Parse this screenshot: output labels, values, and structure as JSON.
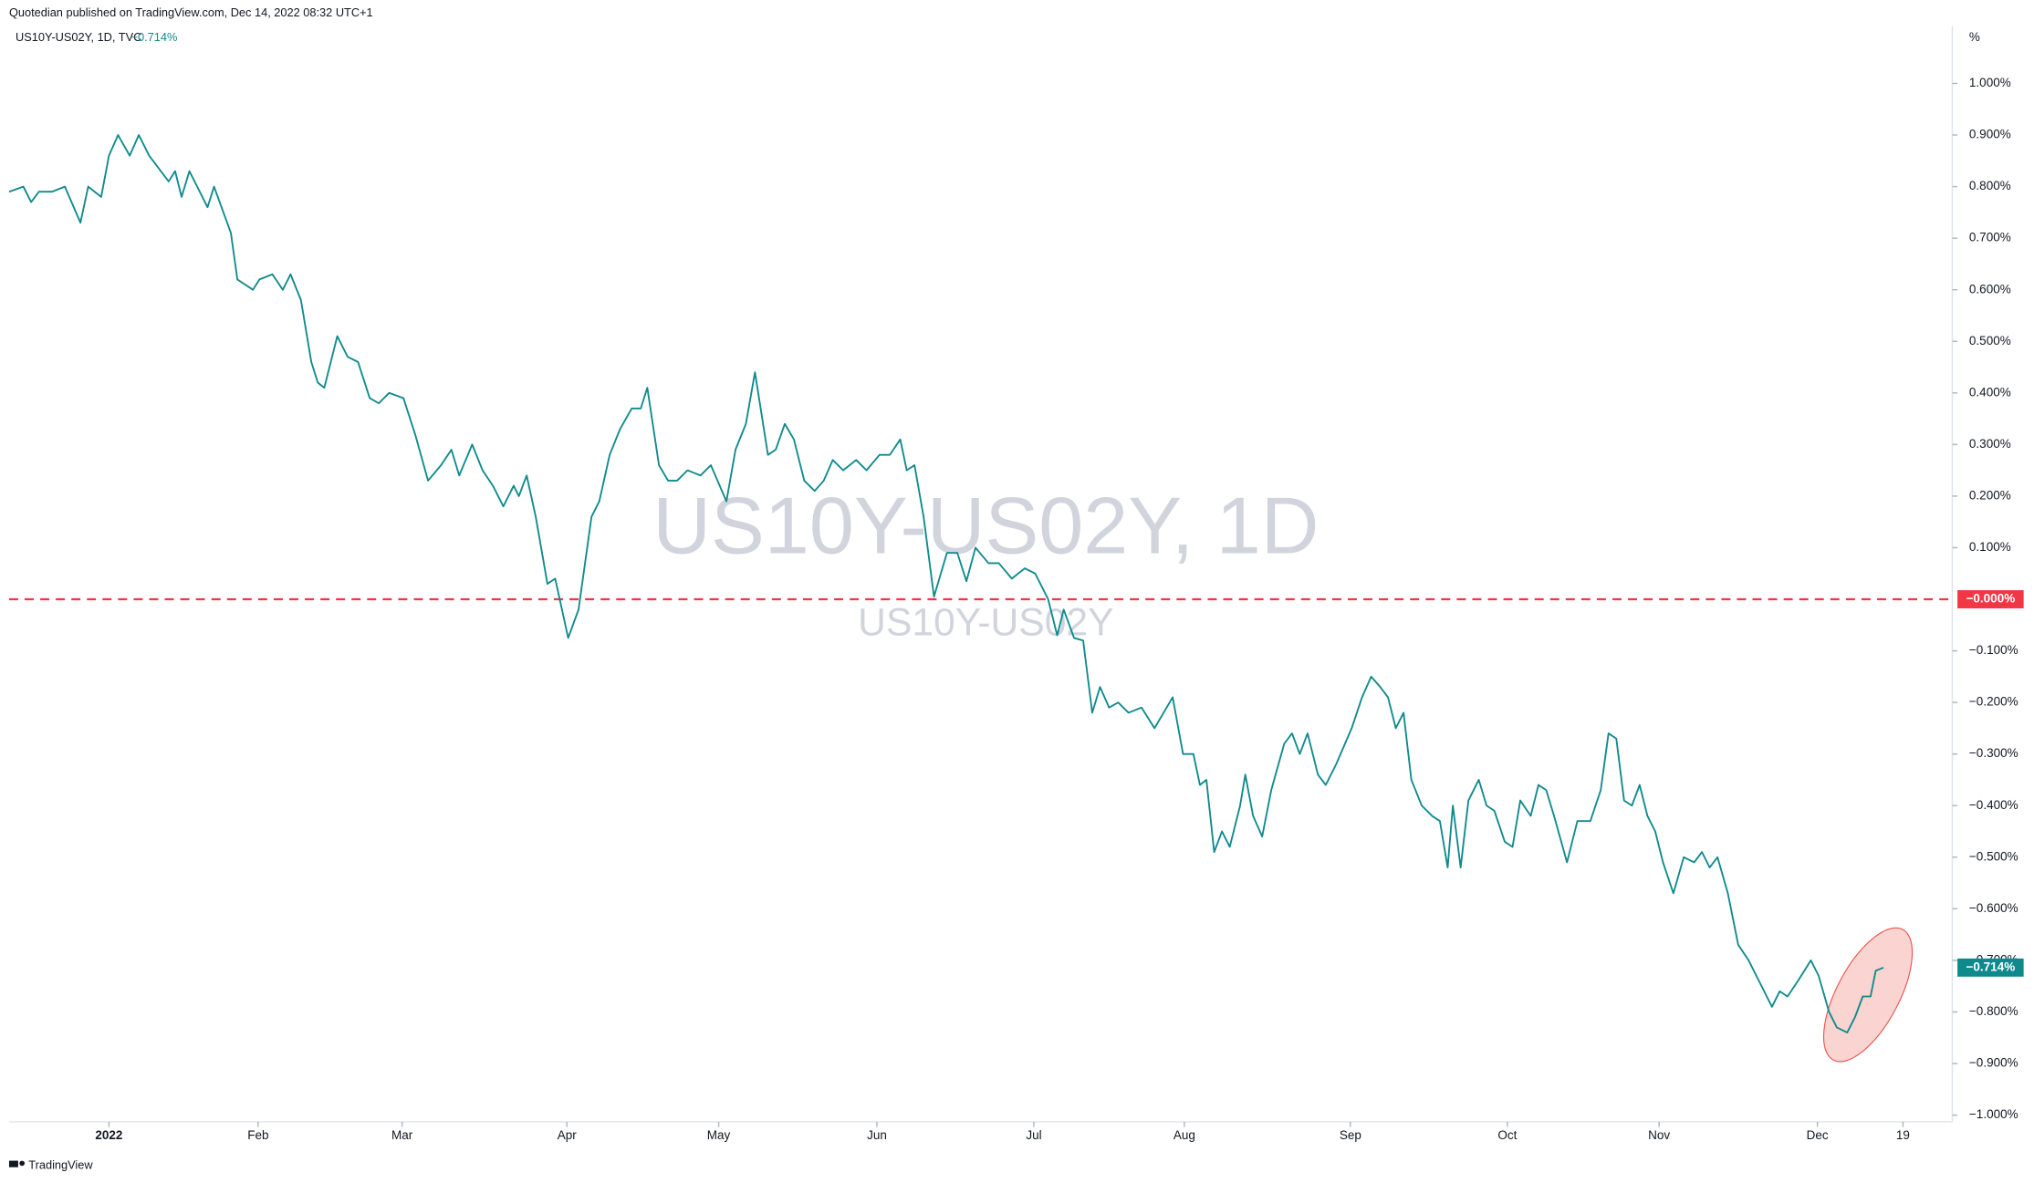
{
  "header": {
    "publisher": "Quotedian published on TradingView.com, Dec 14, 2022 08:32 UTC+1",
    "symbol": "US10Y-US02Y, 1D, TVC",
    "last": "−0.714%"
  },
  "watermark": {
    "title": "US10Y-US02Y, 1D",
    "subtitle": "US10Y-US02Y"
  },
  "footer": "TradingView",
  "chart_data": {
    "type": "line",
    "y_unit": "%",
    "color": "#0e8a8c",
    "x": [
      0,
      11,
      17,
      23,
      33,
      43,
      55,
      61,
      71,
      77,
      84,
      93,
      100,
      108,
      123,
      128,
      133,
      139,
      153,
      158,
      171,
      176,
      188,
      193,
      203,
      211,
      217,
      225,
      233,
      238,
      243,
      253,
      261,
      269,
      278,
      285,
      293,
      304,
      313,
      323,
      333,
      341,
      347,
      357,
      365,
      373,
      381,
      389,
      393,
      399,
      406,
      415,
      421,
      431,
      439,
      449,
      455,
      463,
      471,
      480,
      487,
      492,
      501,
      508,
      515,
      523,
      533,
      541,
      553,
      560,
      568,
      575,
      585,
      591,
      598,
      605,
      613,
      621,
      628,
      635,
      643,
      653,
      661,
      671,
      679,
      687,
      692,
      698,
      705,
      713,
      723,
      731,
      738,
      745,
      755,
      763,
      773,
      783,
      791,
      801,
      808,
      813,
      821,
      828,
      835,
      841,
      848,
      855,
      863,
      873,
      883,
      890,
      897,
      905,
      913,
      918,
      923,
      929,
      935,
      941,
      949,
      953,
      959,
      966,
      973,
      983,
      989,
      995,
      1001,
      1009,
      1015,
      1023,
      1035,
      1043,
      1050,
      1057,
      1063,
      1069,
      1075,
      1081,
      1089,
      1097,
      1103,
      1109,
      1113,
      1119,
      1125,
      1133,
      1139,
      1145,
      1153,
      1159,
      1165,
      1173,
      1179,
      1185,
      1191,
      1201,
      1209,
      1219,
      1227,
      1233,
      1239,
      1245,
      1251,
      1257,
      1263,
      1269,
      1275,
      1283,
      1291,
      1299,
      1305,
      1311,
      1317,
      1325,
      1333,
      1341,
      1349,
      1359,
      1365,
      1371,
      1379,
      1389,
      1395,
      1403,
      1409,
      1417,
      1423,
      1429,
      1435,
      1439,
      1445
    ],
    "values": [
      0.79,
      0.8,
      0.77,
      0.79,
      0.79,
      0.8,
      0.73,
      0.8,
      0.78,
      0.86,
      0.9,
      0.86,
      0.9,
      0.86,
      0.81,
      0.83,
      0.78,
      0.83,
      0.76,
      0.8,
      0.71,
      0.62,
      0.6,
      0.62,
      0.63,
      0.6,
      0.63,
      0.58,
      0.46,
      0.42,
      0.41,
      0.51,
      0.47,
      0.46,
      0.39,
      0.38,
      0.4,
      0.39,
      0.32,
      0.23,
      0.26,
      0.29,
      0.24,
      0.3,
      0.25,
      0.22,
      0.18,
      0.22,
      0.2,
      0.24,
      0.16,
      0.03,
      0.04,
      -0.075,
      -0.02,
      0.16,
      0.19,
      0.28,
      0.33,
      0.37,
      0.37,
      0.41,
      0.26,
      0.23,
      0.23,
      0.25,
      0.24,
      0.26,
      0.19,
      0.29,
      0.34,
      0.44,
      0.28,
      0.29,
      0.34,
      0.31,
      0.23,
      0.21,
      0.23,
      0.27,
      0.25,
      0.27,
      0.25,
      0.28,
      0.28,
      0.31,
      0.25,
      0.26,
      0.16,
      0.005,
      0.09,
      0.09,
      0.035,
      0.1,
      0.07,
      0.07,
      0.04,
      0.06,
      0.05,
      0.0,
      -0.07,
      -0.02,
      -0.075,
      -0.08,
      -0.22,
      -0.17,
      -0.21,
      -0.2,
      -0.22,
      -0.21,
      -0.25,
      -0.22,
      -0.19,
      -0.3,
      -0.3,
      -0.36,
      -0.35,
      -0.49,
      -0.45,
      -0.48,
      -0.4,
      -0.34,
      -0.42,
      -0.46,
      -0.37,
      -0.28,
      -0.26,
      -0.3,
      -0.26,
      -0.34,
      -0.36,
      -0.32,
      -0.25,
      -0.19,
      -0.15,
      -0.17,
      -0.19,
      -0.25,
      -0.22,
      -0.35,
      -0.4,
      -0.42,
      -0.43,
      -0.52,
      -0.4,
      -0.52,
      -0.39,
      -0.35,
      -0.4,
      -0.41,
      -0.47,
      -0.48,
      -0.39,
      -0.42,
      -0.36,
      -0.37,
      -0.42,
      -0.51,
      -0.43,
      -0.43,
      -0.37,
      -0.26,
      -0.27,
      -0.39,
      -0.4,
      -0.36,
      -0.42,
      -0.45,
      -0.51,
      -0.57,
      -0.5,
      -0.51,
      -0.49,
      -0.52,
      -0.5,
      -0.57,
      -0.67,
      -0.7,
      -0.74,
      -0.79,
      -0.76,
      -0.77,
      -0.74,
      -0.7,
      -0.73,
      -0.8,
      -0.83,
      -0.84,
      -0.81,
      -0.77,
      -0.77,
      -0.72,
      -0.714
    ],
    "last_value_label": "−0.714%",
    "reference_line": {
      "value": 0,
      "label": "−0.000%",
      "color": "#f23645"
    },
    "xlim": [
      0,
      1498
    ],
    "xticks": [
      {
        "value": 77,
        "label": "2022"
      },
      {
        "value": 192,
        "label": "Feb"
      },
      {
        "value": 303,
        "label": "Mar"
      },
      {
        "value": 430,
        "label": "Apr"
      },
      {
        "value": 547,
        "label": "May"
      },
      {
        "value": 669,
        "label": "Jun"
      },
      {
        "value": 790,
        "label": "Jul"
      },
      {
        "value": 906,
        "label": "Aug"
      },
      {
        "value": 1034,
        "label": "Sep"
      },
      {
        "value": 1155,
        "label": "Oct"
      },
      {
        "value": 1272,
        "label": "Nov"
      },
      {
        "value": 1394,
        "label": "Dec"
      },
      {
        "value": 1460,
        "label": "19"
      }
    ],
    "ylim": [
      -1.013,
      1.111
    ],
    "yticks": [
      {
        "value": 1.0,
        "label": "1.000%"
      },
      {
        "value": 0.9,
        "label": "0.900%"
      },
      {
        "value": 0.8,
        "label": "0.800%"
      },
      {
        "value": 0.7,
        "label": "0.700%"
      },
      {
        "value": 0.6,
        "label": "0.600%"
      },
      {
        "value": 0.5,
        "label": "0.500%"
      },
      {
        "value": 0.4,
        "label": "0.400%"
      },
      {
        "value": 0.3,
        "label": "0.300%"
      },
      {
        "value": 0.2,
        "label": "0.200%"
      },
      {
        "value": 0.1,
        "label": "0.100%"
      },
      {
        "value": -0.1,
        "label": "−0.100%"
      },
      {
        "value": -0.2,
        "label": "−0.200%"
      },
      {
        "value": -0.3,
        "label": "−0.300%"
      },
      {
        "value": -0.4,
        "label": "−0.400%"
      },
      {
        "value": -0.5,
        "label": "−0.500%"
      },
      {
        "value": -0.6,
        "label": "−0.600%"
      },
      {
        "value": -0.7,
        "label": "−0.700%"
      },
      {
        "value": -0.8,
        "label": "−0.800%"
      },
      {
        "value": -0.9,
        "label": "−0.900%"
      },
      {
        "value": -1.0,
        "label": "−1.000%"
      }
    ],
    "grid": false
  }
}
